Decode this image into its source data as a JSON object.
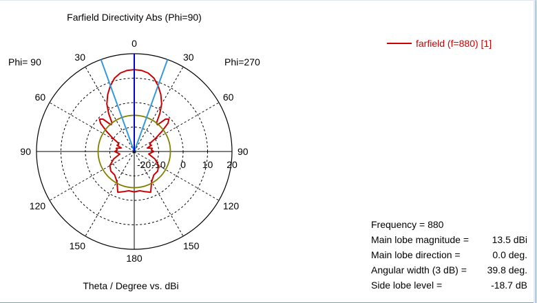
{
  "chart_data": {
    "type": "polar-line",
    "title": "Farfield Directivity Abs (Phi=90)",
    "xlabel": "Theta / Degree vs. dBi",
    "phi_left_label": "Phi= 90",
    "phi_right_label": "Phi=270",
    "r_range": [
      -20,
      20
    ],
    "r_ticks": [
      -20,
      -10,
      0,
      10,
      20
    ],
    "r_tick_labels": [
      "-20",
      "-10",
      "0",
      "10",
      "20"
    ],
    "angle_ticks_right": [
      0,
      30,
      60,
      90,
      120,
      150,
      180
    ],
    "angle_ticks_left": [
      30,
      60,
      90,
      120,
      150
    ],
    "angle_tick_labels_right": [
      "0",
      "30",
      "60",
      "90",
      "120",
      "150",
      "180"
    ],
    "angle_tick_labels_left": [
      "30",
      "60",
      "90",
      "120",
      "150"
    ],
    "grid": true,
    "legend": {
      "position": "top-right",
      "entries": [
        {
          "name": "farfield (f=880) [1]",
          "color": "#cc0000"
        }
      ]
    },
    "series": [
      {
        "name": "farfield (f=880) [1]",
        "color": "#cc0000",
        "theta_deg": [
          0,
          5,
          10,
          15,
          20,
          25,
          30,
          34,
          38,
          41,
          44,
          47,
          50,
          54,
          58,
          62,
          66,
          70,
          75,
          80,
          85,
          90,
          100,
          110,
          120,
          130,
          140,
          150,
          158,
          165,
          172,
          180
        ],
        "r_dbi": [
          13.5,
          13.3,
          12.6,
          11.1,
          8.6,
          5.7,
          2.4,
          -1.3,
          -5.2,
          -5.5,
          -1.6,
          -0.6,
          -2.0,
          -6.0,
          -9.5,
          -12.5,
          -13.0,
          -12.5,
          -14.5,
          -12.5,
          -13.0,
          -12.0,
          -14.0,
          -11.0,
          -8.5,
          -7.5,
          -7.5,
          -5.8,
          -2.0,
          -3.0,
          -3.8,
          -3.5
        ]
      }
    ],
    "main_lobe_direction_deg": 0,
    "beamwidth_markers_deg": [
      -19.9,
      19.9
    ],
    "side_lobe_circle_dbi": -5.2,
    "info_labels": [
      "Frequency = 880",
      "Main lobe magnitude =",
      "Main lobe direction =",
      "Angular width (3 dB) =",
      "Side lobe level ="
    ],
    "info_values": [
      "",
      "13.5 dBi",
      "0.0 deg.",
      "39.8 deg.",
      "-18.7 dB"
    ],
    "colors": {
      "curve": "#cc0000",
      "main_lobe": "#0000cc",
      "beamwidth": "#3399dd",
      "side_lobe_circle": "#808000"
    }
  }
}
